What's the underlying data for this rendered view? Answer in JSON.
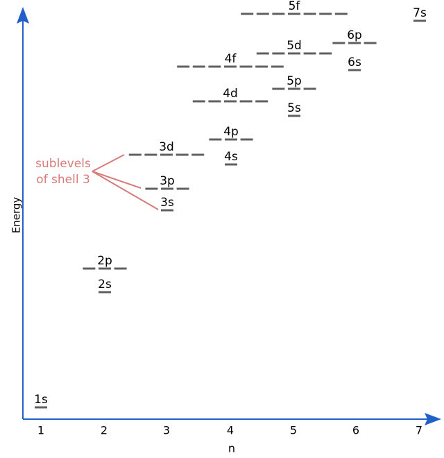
{
  "axis": {
    "y_label": "Energy",
    "x_label": "n",
    "x_ticks": [
      "1",
      "2",
      "3",
      "4",
      "5",
      "6",
      "7"
    ]
  },
  "sublevels": [
    {
      "label": "1s"
    },
    {
      "label": "2s"
    },
    {
      "label": "2p"
    },
    {
      "label": "3s"
    },
    {
      "label": "3p"
    },
    {
      "label": "3d"
    },
    {
      "label": "4s"
    },
    {
      "label": "4p"
    },
    {
      "label": "4d"
    },
    {
      "label": "4f"
    },
    {
      "label": "5s"
    },
    {
      "label": "5p"
    },
    {
      "label": "5d"
    },
    {
      "label": "5f"
    },
    {
      "label": "6s"
    },
    {
      "label": "6p"
    },
    {
      "label": "7s"
    }
  ],
  "annotation": [
    "sublevels",
    "of shell 3"
  ]
}
